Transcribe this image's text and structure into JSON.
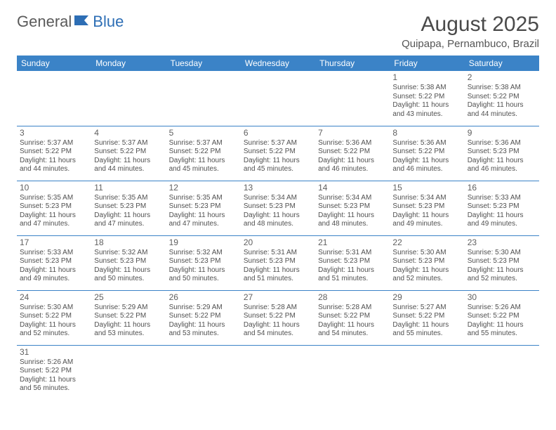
{
  "logo": {
    "part1": "General",
    "part2": "Blue"
  },
  "title": "August 2025",
  "location": "Quipapa, Pernambuco, Brazil",
  "colors": {
    "header_bg": "#3b83c7",
    "header_fg": "#ffffff",
    "border": "#3b83c7",
    "text": "#505050",
    "logo_gray": "#5a5a5a",
    "logo_blue": "#2d6eb5"
  },
  "day_headers": [
    "Sunday",
    "Monday",
    "Tuesday",
    "Wednesday",
    "Thursday",
    "Friday",
    "Saturday"
  ],
  "weeks": [
    [
      null,
      null,
      null,
      null,
      null,
      {
        "n": "1",
        "sr": "5:38 AM",
        "ss": "5:22 PM",
        "dl": "11 hours and 43 minutes."
      },
      {
        "n": "2",
        "sr": "5:38 AM",
        "ss": "5:22 PM",
        "dl": "11 hours and 44 minutes."
      }
    ],
    [
      {
        "n": "3",
        "sr": "5:37 AM",
        "ss": "5:22 PM",
        "dl": "11 hours and 44 minutes."
      },
      {
        "n": "4",
        "sr": "5:37 AM",
        "ss": "5:22 PM",
        "dl": "11 hours and 44 minutes."
      },
      {
        "n": "5",
        "sr": "5:37 AM",
        "ss": "5:22 PM",
        "dl": "11 hours and 45 minutes."
      },
      {
        "n": "6",
        "sr": "5:37 AM",
        "ss": "5:22 PM",
        "dl": "11 hours and 45 minutes."
      },
      {
        "n": "7",
        "sr": "5:36 AM",
        "ss": "5:22 PM",
        "dl": "11 hours and 46 minutes."
      },
      {
        "n": "8",
        "sr": "5:36 AM",
        "ss": "5:22 PM",
        "dl": "11 hours and 46 minutes."
      },
      {
        "n": "9",
        "sr": "5:36 AM",
        "ss": "5:23 PM",
        "dl": "11 hours and 46 minutes."
      }
    ],
    [
      {
        "n": "10",
        "sr": "5:35 AM",
        "ss": "5:23 PM",
        "dl": "11 hours and 47 minutes."
      },
      {
        "n": "11",
        "sr": "5:35 AM",
        "ss": "5:23 PM",
        "dl": "11 hours and 47 minutes."
      },
      {
        "n": "12",
        "sr": "5:35 AM",
        "ss": "5:23 PM",
        "dl": "11 hours and 47 minutes."
      },
      {
        "n": "13",
        "sr": "5:34 AM",
        "ss": "5:23 PM",
        "dl": "11 hours and 48 minutes."
      },
      {
        "n": "14",
        "sr": "5:34 AM",
        "ss": "5:23 PM",
        "dl": "11 hours and 48 minutes."
      },
      {
        "n": "15",
        "sr": "5:34 AM",
        "ss": "5:23 PM",
        "dl": "11 hours and 49 minutes."
      },
      {
        "n": "16",
        "sr": "5:33 AM",
        "ss": "5:23 PM",
        "dl": "11 hours and 49 minutes."
      }
    ],
    [
      {
        "n": "17",
        "sr": "5:33 AM",
        "ss": "5:23 PM",
        "dl": "11 hours and 49 minutes."
      },
      {
        "n": "18",
        "sr": "5:32 AM",
        "ss": "5:23 PM",
        "dl": "11 hours and 50 minutes."
      },
      {
        "n": "19",
        "sr": "5:32 AM",
        "ss": "5:23 PM",
        "dl": "11 hours and 50 minutes."
      },
      {
        "n": "20",
        "sr": "5:31 AM",
        "ss": "5:23 PM",
        "dl": "11 hours and 51 minutes."
      },
      {
        "n": "21",
        "sr": "5:31 AM",
        "ss": "5:23 PM",
        "dl": "11 hours and 51 minutes."
      },
      {
        "n": "22",
        "sr": "5:30 AM",
        "ss": "5:23 PM",
        "dl": "11 hours and 52 minutes."
      },
      {
        "n": "23",
        "sr": "5:30 AM",
        "ss": "5:23 PM",
        "dl": "11 hours and 52 minutes."
      }
    ],
    [
      {
        "n": "24",
        "sr": "5:30 AM",
        "ss": "5:22 PM",
        "dl": "11 hours and 52 minutes."
      },
      {
        "n": "25",
        "sr": "5:29 AM",
        "ss": "5:22 PM",
        "dl": "11 hours and 53 minutes."
      },
      {
        "n": "26",
        "sr": "5:29 AM",
        "ss": "5:22 PM",
        "dl": "11 hours and 53 minutes."
      },
      {
        "n": "27",
        "sr": "5:28 AM",
        "ss": "5:22 PM",
        "dl": "11 hours and 54 minutes."
      },
      {
        "n": "28",
        "sr": "5:28 AM",
        "ss": "5:22 PM",
        "dl": "11 hours and 54 minutes."
      },
      {
        "n": "29",
        "sr": "5:27 AM",
        "ss": "5:22 PM",
        "dl": "11 hours and 55 minutes."
      },
      {
        "n": "30",
        "sr": "5:26 AM",
        "ss": "5:22 PM",
        "dl": "11 hours and 55 minutes."
      }
    ],
    [
      {
        "n": "31",
        "sr": "5:26 AM",
        "ss": "5:22 PM",
        "dl": "11 hours and 56 minutes."
      },
      null,
      null,
      null,
      null,
      null,
      null
    ]
  ],
  "labels": {
    "sunrise": "Sunrise: ",
    "sunset": "Sunset: ",
    "daylight": "Daylight: "
  }
}
